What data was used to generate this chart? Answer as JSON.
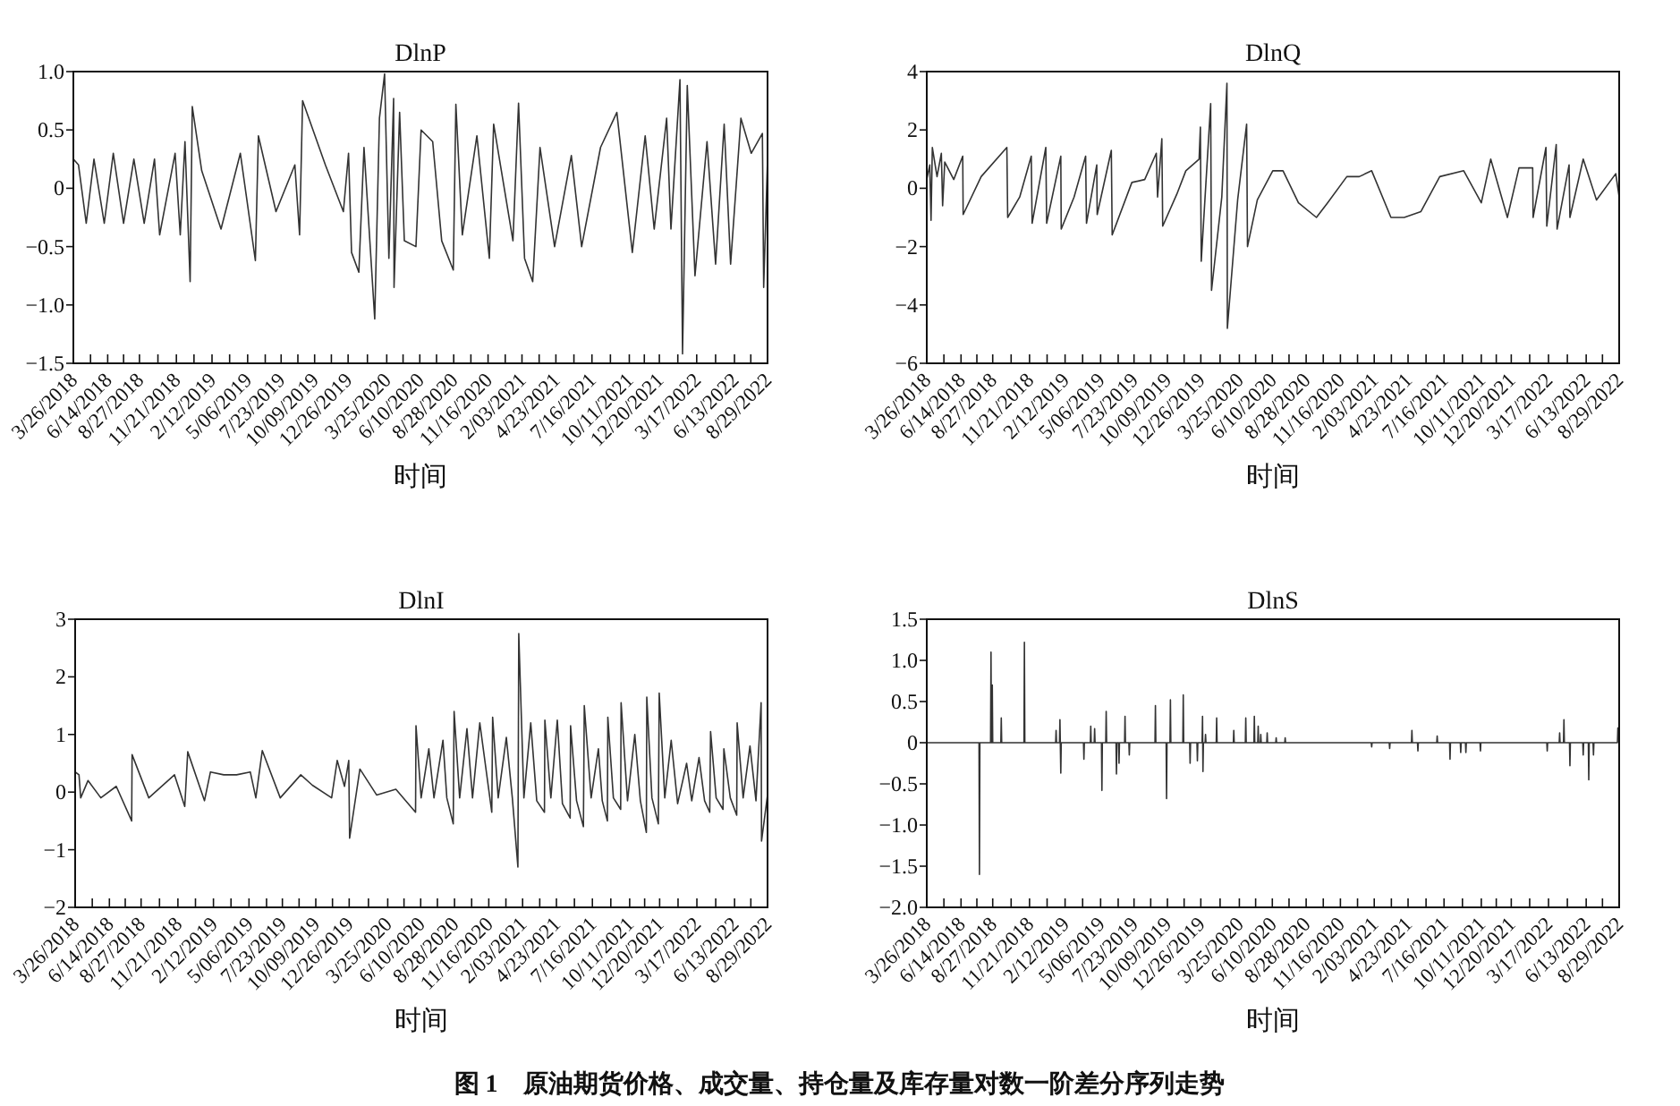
{
  "chart_data": [
    {
      "type": "line",
      "title": "DlnP",
      "xlabel": "时间",
      "xlim": [
        "2018-03-26",
        "2022-08-29"
      ],
      "ylim": [
        -1.5,
        1.0
      ],
      "xticks": [
        {
          "value": "2018-03-26",
          "label": "3/26/2018"
        },
        {
          "value": "2018-05-05",
          "label": null
        },
        {
          "value": "2018-06-14",
          "label": "6/14/2018"
        },
        {
          "value": "2018-07-21",
          "label": null
        },
        {
          "value": "2018-08-27",
          "label": "8/27/2018"
        },
        {
          "value": "2018-10-09",
          "label": null
        },
        {
          "value": "2018-11-21",
          "label": "11/21/2018"
        },
        {
          "value": "2019-01-01",
          "label": null
        },
        {
          "value": "2019-02-12",
          "label": "2/12/2019"
        },
        {
          "value": "2019-03-25",
          "label": null
        },
        {
          "value": "2019-05-06",
          "label": "5/06/2019"
        },
        {
          "value": "2019-06-16",
          "label": null
        },
        {
          "value": "2019-07-23",
          "label": "7/23/2019"
        },
        {
          "value": "2019-08-31",
          "label": null
        },
        {
          "value": "2019-10-09",
          "label": "10/09/2019"
        },
        {
          "value": "2019-11-17",
          "label": null
        },
        {
          "value": "2019-12-26",
          "label": "12/26/2019"
        },
        {
          "value": "2020-02-09",
          "label": null
        },
        {
          "value": "2020-03-25",
          "label": "3/25/2020"
        },
        {
          "value": "2020-05-02",
          "label": null
        },
        {
          "value": "2020-06-10",
          "label": "6/10/2020"
        },
        {
          "value": "2020-07-19",
          "label": null
        },
        {
          "value": "2020-08-28",
          "label": "8/28/2020"
        },
        {
          "value": "2020-10-07",
          "label": null
        },
        {
          "value": "2020-11-16",
          "label": "11/16/2020"
        },
        {
          "value": "2020-12-26",
          "label": null
        },
        {
          "value": "2021-02-03",
          "label": "2/03/2021"
        },
        {
          "value": "2021-03-15",
          "label": null
        },
        {
          "value": "2021-04-23",
          "label": "4/23/2021"
        },
        {
          "value": "2021-06-04",
          "label": null
        },
        {
          "value": "2021-07-16",
          "label": "7/16/2021"
        },
        {
          "value": "2021-08-28",
          "label": null
        },
        {
          "value": "2021-10-11",
          "label": "10/11/2021"
        },
        {
          "value": "2021-11-15",
          "label": null
        },
        {
          "value": "2021-12-20",
          "label": "12/20/2021"
        },
        {
          "value": "2022-02-01",
          "label": null
        },
        {
          "value": "2022-03-17",
          "label": "3/17/2022"
        },
        {
          "value": "2022-04-30",
          "label": null
        },
        {
          "value": "2022-06-13",
          "label": "6/13/2022"
        },
        {
          "value": "2022-07-21",
          "label": null
        },
        {
          "value": "2022-08-29",
          "label": "8/29/2022"
        }
      ],
      "yticks": [
        {
          "value": -1.5,
          "label": "−1.5"
        },
        {
          "value": -1,
          "label": "−1.0"
        },
        {
          "value": -0.5,
          "label": "−0.5"
        },
        0,
        {
          "value": 0.5,
          "label": "0.5"
        },
        {
          "value": 1,
          "label": "1.0"
        }
      ],
      "series": [
        {
          "color": "#333333",
          "x": [
            "2018-03-26",
            "2018-04-07",
            "2018-04-25",
            "2018-05-13",
            "2018-06-06",
            "2018-06-27",
            "2018-07-21",
            "2018-08-14",
            "2018-09-07",
            "2018-10-01",
            "2018-10-13",
            "2018-11-18",
            "2018-11-30",
            "2018-12-11",
            "2018-12-23",
            "2018-12-28",
            "2019-01-19",
            "2019-03-05",
            "2019-04-19",
            "2019-05-24",
            "2019-05-31",
            "2019-07-11",
            "2019-08-24",
            "2019-09-04",
            "2019-09-11",
            "2019-11-03",
            "2019-12-15",
            "2019-12-27",
            "2020-01-03",
            "2020-01-20",
            "2020-02-01",
            "2020-02-26",
            "2020-03-08",
            "2020-03-20",
            "2020-03-30",
            "2020-04-10",
            "2020-04-11",
            "2020-04-24",
            "2020-05-05",
            "2020-06-01",
            "2020-06-13",
            "2020-07-10",
            "2020-07-31",
            "2020-08-27",
            "2020-09-02",
            "2020-09-17",
            "2020-10-21",
            "2020-11-19",
            "2020-11-29",
            "2021-01-13",
            "2021-01-26",
            "2021-02-09",
            "2021-02-28",
            "2021-03-17",
            "2021-04-20",
            "2021-05-29",
            "2021-06-22",
            "2021-08-05",
            "2021-09-12",
            "2021-10-18",
            "2021-11-17",
            "2021-12-08",
            "2022-01-06",
            "2022-01-16",
            "2022-02-06",
            "2022-02-12",
            "2022-02-23",
            "2022-03-13",
            "2022-04-10",
            "2022-04-30",
            "2022-05-20",
            "2022-06-04",
            "2022-06-28",
            "2022-07-22",
            "2022-08-17",
            "2022-08-20",
            "2022-08-29"
          ],
          "values": [
            0.25,
            0.2,
            -0.3,
            0.25,
            -0.3,
            0.3,
            -0.3,
            0.25,
            -0.3,
            0.25,
            -0.4,
            0.3,
            -0.4,
            0.4,
            -0.8,
            0.7,
            0.15,
            -0.35,
            0.3,
            -0.62,
            0.45,
            -0.2,
            0.2,
            -0.4,
            0.75,
            0.2,
            -0.2,
            0.3,
            -0.55,
            -0.72,
            0.35,
            -1.12,
            0.6,
            0.98,
            -0.6,
            0.77,
            -0.85,
            0.65,
            -0.45,
            -0.5,
            0.5,
            0.4,
            -0.45,
            -0.7,
            0.72,
            -0.4,
            0.45,
            -0.6,
            0.55,
            -0.45,
            0.73,
            -0.6,
            -0.8,
            0.35,
            -0.5,
            0.28,
            -0.5,
            0.35,
            0.65,
            -0.55,
            0.45,
            -0.35,
            0.6,
            -0.35,
            0.93,
            -1.42,
            0.88,
            -0.75,
            0.4,
            -0.65,
            0.55,
            -0.65,
            0.6,
            0.3,
            0.47,
            -0.85,
            0.25
          ]
        }
      ]
    },
    {
      "type": "line",
      "title": "DlnQ",
      "xlabel": "时间",
      "xlim": [
        "2018-03-26",
        "2022-08-29"
      ],
      "ylim": [
        -6,
        4
      ],
      "xticks": [
        {
          "value": "2018-03-26",
          "label": "3/26/2018"
        },
        {
          "value": "2018-05-05",
          "label": null
        },
        {
          "value": "2018-06-14",
          "label": "6/14/2018"
        },
        {
          "value": "2018-07-21",
          "label": null
        },
        {
          "value": "2018-08-27",
          "label": "8/27/2018"
        },
        {
          "value": "2018-10-09",
          "label": null
        },
        {
          "value": "2018-11-21",
          "label": "11/21/2018"
        },
        {
          "value": "2019-01-01",
          "label": null
        },
        {
          "value": "2019-02-12",
          "label": "2/12/2019"
        },
        {
          "value": "2019-03-25",
          "label": null
        },
        {
          "value": "2019-05-06",
          "label": "5/06/2019"
        },
        {
          "value": "2019-06-16",
          "label": null
        },
        {
          "value": "2019-07-23",
          "label": "7/23/2019"
        },
        {
          "value": "2019-08-31",
          "label": null
        },
        {
          "value": "2019-10-09",
          "label": "10/09/2019"
        },
        {
          "value": "2019-11-17",
          "label": null
        },
        {
          "value": "2019-12-26",
          "label": "12/26/2019"
        },
        {
          "value": "2020-02-09",
          "label": null
        },
        {
          "value": "2020-03-25",
          "label": "3/25/2020"
        },
        {
          "value": "2020-05-02",
          "label": null
        },
        {
          "value": "2020-06-10",
          "label": "6/10/2020"
        },
        {
          "value": "2020-07-19",
          "label": null
        },
        {
          "value": "2020-08-28",
          "label": "8/28/2020"
        },
        {
          "value": "2020-10-07",
          "label": null
        },
        {
          "value": "2020-11-16",
          "label": "11/16/2020"
        },
        {
          "value": "2020-12-26",
          "label": null
        },
        {
          "value": "2021-02-03",
          "label": "2/03/2021"
        },
        {
          "value": "2021-03-15",
          "label": null
        },
        {
          "value": "2021-04-23",
          "label": "4/23/2021"
        },
        {
          "value": "2021-06-04",
          "label": null
        },
        {
          "value": "2021-07-16",
          "label": "7/16/2021"
        },
        {
          "value": "2021-08-28",
          "label": null
        },
        {
          "value": "2021-10-11",
          "label": "10/11/2021"
        },
        {
          "value": "2021-11-15",
          "label": null
        },
        {
          "value": "2021-12-20",
          "label": "12/20/2021"
        },
        {
          "value": "2022-02-01",
          "label": null
        },
        {
          "value": "2022-03-17",
          "label": "3/17/2022"
        },
        {
          "value": "2022-04-30",
          "label": null
        },
        {
          "value": "2022-06-13",
          "label": "6/13/2022"
        },
        {
          "value": "2022-07-21",
          "label": null
        },
        {
          "value": "2022-08-29",
          "label": "8/29/2022"
        }
      ],
      "yticks": [
        {
          "value": -6,
          "label": "−6"
        },
        {
          "value": -4,
          "label": "−4"
        },
        {
          "value": -2,
          "label": "−2"
        },
        0,
        2,
        4
      ],
      "series": [
        {
          "color": "#333333",
          "x": [
            "2018-03-26",
            "2018-04-02",
            "2018-04-05",
            "2018-04-08",
            "2018-04-19",
            "2018-04-29",
            "2018-05-02",
            "2018-05-07",
            "2018-05-28",
            "2018-06-18",
            "2018-06-19",
            "2018-07-31",
            "2018-09-29",
            "2018-10-01",
            "2018-10-29",
            "2018-11-25",
            "2018-11-27",
            "2018-12-29",
            "2018-12-31",
            "2019-02-02",
            "2019-02-03",
            "2019-03-05",
            "2019-04-01",
            "2019-04-03",
            "2019-04-27",
            "2019-04-28",
            "2019-05-31",
            "2019-06-02",
            "2019-07-18",
            "2019-08-17",
            "2019-09-13",
            "2019-09-16",
            "2019-09-26",
            "2019-09-28",
            "2019-10-31",
            "2019-11-21",
            "2019-12-22",
            "2019-12-25",
            "2019-12-27",
            "2020-01-18",
            "2020-01-20",
            "2020-02-13",
            "2020-02-25",
            "2020-02-26",
            "2020-03-21",
            "2020-04-11",
            "2020-04-13",
            "2020-05-06",
            "2020-06-11",
            "2020-07-05",
            "2020-08-10",
            "2020-09-21",
            "2020-10-17",
            "2020-12-01",
            "2020-12-30",
            "2021-01-28",
            "2021-03-14",
            "2021-04-14",
            "2021-05-23",
            "2021-07-06",
            "2021-08-31",
            "2021-10-11",
            "2021-11-02",
            "2021-12-11",
            "2022-01-07",
            "2022-02-08",
            "2022-02-09",
            "2022-03-11",
            "2022-03-13",
            "2022-04-04",
            "2022-04-06",
            "2022-05-04",
            "2022-05-06",
            "2022-06-06",
            "2022-07-07",
            "2022-08-21",
            "2022-08-29"
          ],
          "values": [
            0.3,
            0.8,
            -1.1,
            1.4,
            0.4,
            1.2,
            -0.6,
            0.9,
            0.3,
            1.1,
            -0.9,
            0.4,
            1.4,
            -1.0,
            -0.3,
            1.1,
            -1.2,
            1.4,
            -1.2,
            1.1,
            -1.4,
            -0.3,
            1.1,
            -1.2,
            0.8,
            -0.9,
            1.3,
            -1.6,
            0.2,
            0.3,
            1.2,
            -0.3,
            1.7,
            -1.3,
            -0.2,
            0.6,
            1.0,
            2.1,
            -2.5,
            2.9,
            -3.5,
            -0.3,
            3.6,
            -4.8,
            -0.4,
            2.2,
            -2.0,
            -0.4,
            0.6,
            0.6,
            -0.5,
            -1.0,
            -0.5,
            0.4,
            0.4,
            0.6,
            -1.0,
            -1.0,
            -0.8,
            0.4,
            0.6,
            -0.5,
            1.0,
            -1.0,
            0.7,
            0.7,
            -1.0,
            1.4,
            -1.3,
            1.5,
            -1.4,
            0.8,
            -1.0,
            1.0,
            -0.4,
            0.5,
            -0.3
          ]
        }
      ]
    },
    {
      "type": "line",
      "title": "DlnI",
      "xlabel": "时间",
      "xlim": [
        "2018-03-26",
        "2022-08-29"
      ],
      "ylim": [
        -2,
        3
      ],
      "xticks": [
        {
          "value": "2018-03-26",
          "label": "3/26/2018"
        },
        {
          "value": "2018-05-05",
          "label": null
        },
        {
          "value": "2018-06-14",
          "label": "6/14/2018"
        },
        {
          "value": "2018-07-21",
          "label": null
        },
        {
          "value": "2018-08-27",
          "label": "8/27/2018"
        },
        {
          "value": "2018-10-09",
          "label": null
        },
        {
          "value": "2018-11-21",
          "label": "11/21/2018"
        },
        {
          "value": "2019-01-01",
          "label": null
        },
        {
          "value": "2019-02-12",
          "label": "2/12/2019"
        },
        {
          "value": "2019-03-25",
          "label": null
        },
        {
          "value": "2019-05-06",
          "label": "5/06/2019"
        },
        {
          "value": "2019-06-16",
          "label": null
        },
        {
          "value": "2019-07-23",
          "label": "7/23/2019"
        },
        {
          "value": "2019-08-31",
          "label": null
        },
        {
          "value": "2019-10-09",
          "label": "10/09/2019"
        },
        {
          "value": "2019-11-17",
          "label": null
        },
        {
          "value": "2019-12-26",
          "label": "12/26/2019"
        },
        {
          "value": "2020-02-09",
          "label": null
        },
        {
          "value": "2020-03-25",
          "label": "3/25/2020"
        },
        {
          "value": "2020-05-02",
          "label": null
        },
        {
          "value": "2020-06-10",
          "label": "6/10/2020"
        },
        {
          "value": "2020-07-19",
          "label": null
        },
        {
          "value": "2020-08-28",
          "label": "8/28/2020"
        },
        {
          "value": "2020-10-07",
          "label": null
        },
        {
          "value": "2020-11-16",
          "label": "11/16/2020"
        },
        {
          "value": "2020-12-26",
          "label": null
        },
        {
          "value": "2021-02-03",
          "label": "2/03/2021"
        },
        {
          "value": "2021-03-15",
          "label": null
        },
        {
          "value": "2021-04-23",
          "label": "4/23/2021"
        },
        {
          "value": "2021-06-04",
          "label": null
        },
        {
          "value": "2021-07-16",
          "label": "7/16/2021"
        },
        {
          "value": "2021-08-28",
          "label": null
        },
        {
          "value": "2021-10-11",
          "label": "10/11/2021"
        },
        {
          "value": "2021-11-15",
          "label": null
        },
        {
          "value": "2021-12-20",
          "label": "12/20/2021"
        },
        {
          "value": "2022-02-01",
          "label": null
        },
        {
          "value": "2022-03-17",
          "label": "3/17/2022"
        },
        {
          "value": "2022-04-30",
          "label": null
        },
        {
          "value": "2022-06-13",
          "label": "6/13/2022"
        },
        {
          "value": "2022-07-21",
          "label": null
        },
        {
          "value": "2022-08-29",
          "label": "8/29/2022"
        }
      ],
      "yticks": [
        {
          "value": -2,
          "label": "−2"
        },
        {
          "value": -1,
          "label": "−1"
        },
        0,
        1,
        2,
        3
      ],
      "series": [
        {
          "color": "#333333",
          "x": [
            "2018-03-26",
            "2018-04-04",
            "2018-04-08",
            "2018-04-25",
            "2018-05-25",
            "2018-06-30",
            "2018-08-05",
            "2018-08-06",
            "2018-09-14",
            "2018-11-13",
            "2018-12-07",
            "2018-12-14",
            "2019-01-22",
            "2019-02-05",
            "2019-03-08",
            "2019-04-07",
            "2019-05-09",
            "2019-05-22",
            "2019-06-06",
            "2019-07-18",
            "2019-09-04",
            "2019-10-01",
            "2019-11-15",
            "2019-11-28",
            "2019-12-15",
            "2019-12-25",
            "2019-12-27",
            "2020-01-20",
            "2020-02-28",
            "2020-04-13",
            "2020-05-29",
            "2020-05-30",
            "2020-06-11",
            "2020-06-29",
            "2020-07-11",
            "2020-08-01",
            "2020-08-10",
            "2020-08-25",
            "2020-08-27",
            "2020-09-09",
            "2020-09-26",
            "2020-10-09",
            "2020-10-26",
            "2020-11-23",
            "2020-11-25",
            "2020-12-08",
            "2020-12-27",
            "2021-01-10",
            "2021-01-23",
            "2021-01-25",
            "2021-02-06",
            "2021-02-22",
            "2021-03-08",
            "2021-03-26",
            "2021-03-27",
            "2021-04-10",
            "2021-04-25",
            "2021-05-07",
            "2021-05-25",
            "2021-05-26",
            "2021-06-09",
            "2021-06-25",
            "2021-06-27",
            "2021-07-13",
            "2021-07-30",
            "2021-08-08",
            "2021-08-20",
            "2021-08-21",
            "2021-09-03",
            "2021-09-20",
            "2021-09-21",
            "2021-10-06",
            "2021-10-23",
            "2021-11-05",
            "2021-11-19",
            "2021-11-20",
            "2021-12-02",
            "2021-12-17",
            "2021-12-19",
            "2022-01-01",
            "2022-01-16",
            "2022-01-31",
            "2022-02-21",
            "2022-03-05",
            "2022-03-22",
            "2022-04-04",
            "2022-04-16",
            "2022-04-18",
            "2022-05-01",
            "2022-05-17",
            "2022-05-19",
            "2022-06-03",
            "2022-06-18",
            "2022-06-19",
            "2022-07-03",
            "2022-07-19",
            "2022-08-02",
            "2022-08-14",
            "2022-08-15",
            "2022-08-29"
          ],
          "values": [
            0.35,
            0.3,
            -0.1,
            0.2,
            -0.1,
            0.1,
            -0.5,
            0.65,
            -0.1,
            0.3,
            -0.25,
            0.7,
            -0.15,
            0.35,
            0.3,
            0.3,
            0.35,
            -0.1,
            0.72,
            -0.1,
            0.3,
            0.12,
            -0.1,
            0.55,
            0.1,
            0.55,
            -0.8,
            0.4,
            -0.05,
            0.05,
            -0.35,
            1.15,
            -0.1,
            0.75,
            -0.1,
            0.9,
            -0.1,
            -0.55,
            1.4,
            -0.1,
            1.1,
            -0.1,
            1.2,
            -0.35,
            1.3,
            -0.1,
            0.95,
            -0.1,
            -1.3,
            2.75,
            -0.1,
            1.2,
            -0.15,
            -0.35,
            1.25,
            -0.1,
            1.25,
            -0.2,
            -0.45,
            1.15,
            -0.15,
            -0.6,
            1.5,
            -0.1,
            0.75,
            -0.15,
            -0.5,
            1.3,
            -0.1,
            -0.3,
            1.55,
            -0.15,
            1.0,
            -0.15,
            -0.7,
            1.65,
            -0.1,
            -0.55,
            1.72,
            -0.1,
            0.9,
            -0.2,
            0.5,
            -0.15,
            0.6,
            -0.15,
            -0.35,
            1.05,
            -0.1,
            -0.3,
            0.75,
            -0.1,
            -0.4,
            1.2,
            -0.1,
            0.8,
            -0.15,
            1.55,
            -0.85,
            -0.05
          ]
        }
      ]
    },
    {
      "type": "line",
      "title": "DlnS",
      "xlabel": "时间",
      "xlim": [
        "2018-03-26",
        "2022-08-29"
      ],
      "ylim": [
        -2.0,
        1.5
      ],
      "xticks": [
        {
          "value": "2018-03-26",
          "label": "3/26/2018"
        },
        {
          "value": "2018-05-05",
          "label": null
        },
        {
          "value": "2018-06-14",
          "label": "6/14/2018"
        },
        {
          "value": "2018-07-21",
          "label": null
        },
        {
          "value": "2018-08-27",
          "label": "8/27/2018"
        },
        {
          "value": "2018-10-09",
          "label": null
        },
        {
          "value": "2018-11-21",
          "label": "11/21/2018"
        },
        {
          "value": "2019-01-01",
          "label": null
        },
        {
          "value": "2019-02-12",
          "label": "2/12/2019"
        },
        {
          "value": "2019-03-25",
          "label": null
        },
        {
          "value": "2019-05-06",
          "label": "5/06/2019"
        },
        {
          "value": "2019-06-16",
          "label": null
        },
        {
          "value": "2019-07-23",
          "label": "7/23/2019"
        },
        {
          "value": "2019-08-31",
          "label": null
        },
        {
          "value": "2019-10-09",
          "label": "10/09/2019"
        },
        {
          "value": "2019-11-17",
          "label": null
        },
        {
          "value": "2019-12-26",
          "label": "12/26/2019"
        },
        {
          "value": "2020-02-09",
          "label": null
        },
        {
          "value": "2020-03-25",
          "label": "3/25/2020"
        },
        {
          "value": "2020-05-02",
          "label": null
        },
        {
          "value": "2020-06-10",
          "label": "6/10/2020"
        },
        {
          "value": "2020-07-19",
          "label": null
        },
        {
          "value": "2020-08-28",
          "label": "8/28/2020"
        },
        {
          "value": "2020-10-07",
          "label": null
        },
        {
          "value": "2020-11-16",
          "label": "11/16/2020"
        },
        {
          "value": "2020-12-26",
          "label": null
        },
        {
          "value": "2021-02-03",
          "label": "2/03/2021"
        },
        {
          "value": "2021-03-15",
          "label": null
        },
        {
          "value": "2021-04-23",
          "label": "4/23/2021"
        },
        {
          "value": "2021-06-04",
          "label": null
        },
        {
          "value": "2021-07-16",
          "label": "7/16/2021"
        },
        {
          "value": "2021-08-28",
          "label": null
        },
        {
          "value": "2021-10-11",
          "label": "10/11/2021"
        },
        {
          "value": "2021-11-15",
          "label": null
        },
        {
          "value": "2021-12-20",
          "label": "12/20/2021"
        },
        {
          "value": "2022-02-01",
          "label": null
        },
        {
          "value": "2022-03-17",
          "label": "3/17/2022"
        },
        {
          "value": "2022-04-30",
          "label": null
        },
        {
          "value": "2022-06-13",
          "label": "6/13/2022"
        },
        {
          "value": "2022-07-21",
          "label": null
        },
        {
          "value": "2022-08-29",
          "label": "8/29/2022"
        }
      ],
      "yticks": [
        {
          "value": -2,
          "label": "−2.0"
        },
        {
          "value": -1.5,
          "label": "−1.5"
        },
        {
          "value": -1,
          "label": "−1.0"
        },
        {
          "value": -0.5,
          "label": "−0.5"
        },
        0,
        {
          "value": 0.5,
          "label": "0.5"
        },
        {
          "value": 1,
          "label": "1.0"
        },
        {
          "value": 1.5,
          "label": "1.5"
        }
      ],
      "annotations": [
        "图 1　原油期货价格、成交量、持仓量及库存量对数一阶差分序列走势"
      ],
      "series": [
        {
          "color": "#333333",
          "x": [
            "2018-03-26",
            "2018-07-26",
            "2018-07-27",
            "2018-07-28",
            "2018-08-22",
            "2018-08-23",
            "2018-08-24",
            "2018-08-25",
            "2018-08-26",
            "2018-08-27",
            "2018-09-15",
            "2018-09-16",
            "2018-09-17",
            "2018-11-08",
            "2018-11-09",
            "2018-11-10",
            "2019-01-21",
            "2019-01-22",
            "2019-01-23",
            "2019-01-30",
            "2019-01-31",
            "2019-02-02",
            "2019-02-03",
            "2019-03-27",
            "2019-03-28",
            "2019-03-29",
            "2019-04-12",
            "2019-04-13",
            "2019-04-14",
            "2019-04-21",
            "2019-04-22",
            "2019-04-23",
            "2019-05-08",
            "2019-05-09",
            "2019-05-10",
            "2019-05-18",
            "2019-05-19",
            "2019-05-20",
            "2019-06-11",
            "2019-06-12",
            "2019-06-13",
            "2019-06-17",
            "2019-06-18",
            "2019-06-19",
            "2019-07-01",
            "2019-07-02",
            "2019-07-03",
            "2019-07-11",
            "2019-07-12",
            "2019-07-13",
            "2019-09-10",
            "2019-09-11",
            "2019-09-12",
            "2019-10-06",
            "2019-10-07",
            "2019-10-08",
            "2019-10-15",
            "2019-10-16",
            "2019-10-17",
            "2019-11-14",
            "2019-11-15",
            "2019-11-16",
            "2019-11-30",
            "2019-12-01",
            "2019-12-02",
            "2019-12-17",
            "2019-12-18",
            "2019-12-19",
            "2019-12-29",
            "2019-12-30",
            "2019-12-31",
            "2020-01-01",
            "2020-01-05",
            "2020-01-06",
            "2020-01-07",
            "2020-01-31",
            "2020-02-01",
            "2020-02-02",
            "2020-03-11",
            "2020-03-12",
            "2020-03-13",
            "2020-04-08",
            "2020-04-09",
            "2020-04-10",
            "2020-04-28",
            "2020-04-29",
            "2020-04-30",
            "2020-05-07",
            "2020-05-08",
            "2020-05-09",
            "2020-05-13",
            "2020-05-14",
            "2020-05-15",
            "2020-05-28",
            "2020-05-29",
            "2020-05-30",
            "2020-06-18",
            "2020-06-19",
            "2020-06-20",
            "2020-07-09",
            "2020-07-10",
            "2020-07-11",
            "2021-01-27",
            "2021-01-28",
            "2021-01-29",
            "2021-03-10",
            "2021-03-11",
            "2021-03-12",
            "2021-05-01",
            "2021-05-02",
            "2021-05-03",
            "2021-05-15",
            "2021-05-16",
            "2021-05-17",
            "2021-06-29",
            "2021-06-30",
            "2021-07-01",
            "2021-07-29",
            "2021-07-30",
            "2021-07-31",
            "2021-08-23",
            "2021-08-24",
            "2021-08-25",
            "2021-09-04",
            "2021-09-05",
            "2021-09-06",
            "2021-10-08",
            "2021-10-09",
            "2021-10-10",
            "2022-03-13",
            "2022-03-14",
            "2022-03-15",
            "2022-04-11",
            "2022-04-12",
            "2022-04-13",
            "2022-04-21",
            "2022-04-22",
            "2022-04-23",
            "2022-05-05",
            "2022-05-06",
            "2022-05-07",
            "2022-06-05",
            "2022-06-06",
            "2022-06-07",
            "2022-06-18",
            "2022-06-19",
            "2022-06-20",
            "2022-06-29",
            "2022-06-30",
            "2022-07-01",
            "2022-08-25",
            "2022-08-26",
            "2022-08-29"
          ],
          "values": [
            0,
            0,
            -1.6,
            0,
            0,
            1.1,
            0,
            0,
            0.7,
            0,
            0,
            0.3,
            0,
            0,
            1.22,
            0,
            0,
            0.15,
            0,
            0,
            0.28,
            -0.37,
            0,
            0,
            -0.2,
            0,
            0,
            0.2,
            0,
            0,
            0.17,
            0,
            0,
            -0.58,
            0,
            0,
            0.38,
            0,
            0,
            -0.38,
            0,
            0,
            -0.25,
            0,
            0,
            0.32,
            0,
            0,
            -0.15,
            0,
            0,
            0.45,
            0,
            0,
            -0.68,
            0,
            0,
            0.52,
            0,
            0,
            0.58,
            0,
            0,
            -0.25,
            0,
            0,
            -0.22,
            0,
            0,
            0.32,
            -0.35,
            0,
            0,
            0.1,
            0,
            0,
            0.3,
            0,
            0,
            0.15,
            0,
            0,
            0.3,
            0,
            0,
            0.32,
            0,
            0,
            0.2,
            0,
            0,
            0.1,
            0,
            0,
            0.12,
            0,
            0,
            0.06,
            0,
            0,
            0.06,
            0,
            0,
            -0.05,
            0,
            0,
            -0.07,
            0,
            0,
            0.15,
            0,
            0,
            -0.1,
            0,
            0,
            0.08,
            0,
            0,
            -0.2,
            0,
            0,
            -0.12,
            0,
            0,
            -0.12,
            0,
            0,
            -0.1,
            0,
            0,
            -0.1,
            0,
            0,
            0.12,
            0,
            0,
            0.28,
            0,
            0,
            -0.28,
            0,
            0,
            -0.15,
            0,
            0,
            -0.45,
            0,
            0,
            -0.15,
            0,
            0,
            0.18,
            0.18
          ]
        }
      ]
    }
  ]
}
